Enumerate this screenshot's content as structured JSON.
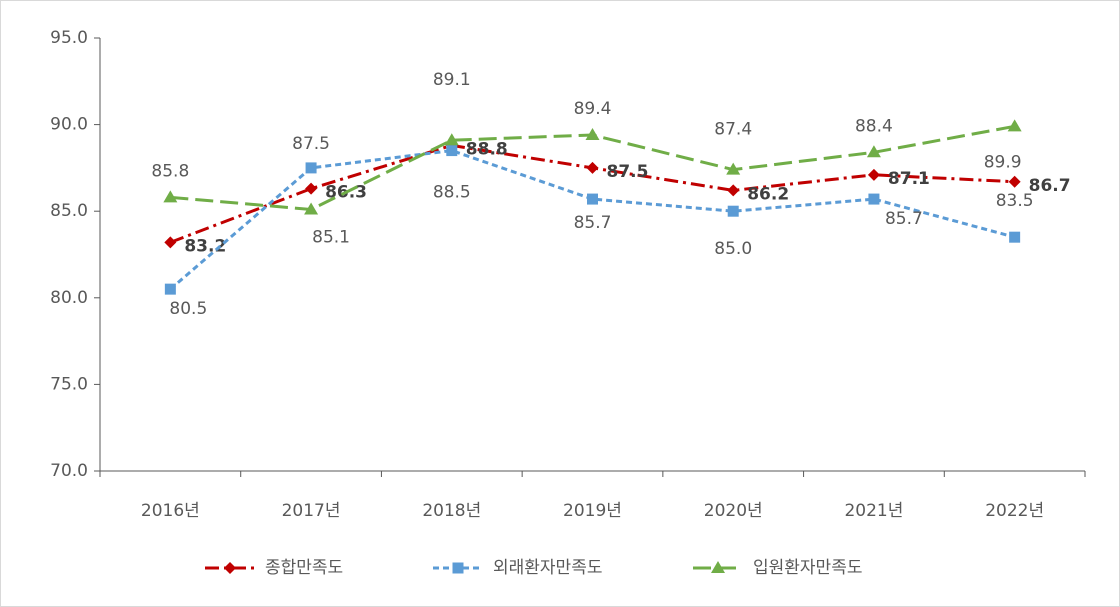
{
  "chart_data": {
    "type": "line",
    "categories": [
      "2016년",
      "2017년",
      "2018년",
      "2019년",
      "2020년",
      "2021년",
      "2022년"
    ],
    "series": [
      {
        "name": "종합만족도",
        "color": "#c00000",
        "dash": "dash-dot",
        "marker": "diamond",
        "values": [
          83.2,
          86.3,
          88.8,
          87.5,
          86.2,
          87.1,
          86.7
        ],
        "value_labels": [
          "83.2",
          "86.3",
          "88.8",
          "87.5",
          "86.2",
          "87.1",
          "86.7"
        ]
      },
      {
        "name": "외래환자만족도",
        "color": "#5b9bd5",
        "dash": "dash",
        "marker": "square",
        "values": [
          80.5,
          87.5,
          88.5,
          85.7,
          85.0,
          85.7,
          83.5
        ],
        "value_labels": [
          "80.5",
          "87.5",
          "88.5",
          "85.7",
          "85.0",
          "85.7",
          "83.5"
        ]
      },
      {
        "name": "입원환자만족도",
        "color": "#70ad47",
        "dash": "long-dash",
        "marker": "triangle",
        "values": [
          85.8,
          85.1,
          89.1,
          89.4,
          87.4,
          88.4,
          89.9
        ],
        "value_labels": [
          "85.8",
          "85.1",
          "89.1",
          "89.4",
          "87.4",
          "88.4",
          "89.9"
        ]
      }
    ],
    "ylim": [
      70,
      95
    ],
    "yticks": [
      {
        "value": 70,
        "label": "70.0"
      },
      {
        "value": 75,
        "label": "75.0"
      },
      {
        "value": 80,
        "label": "80.0"
      },
      {
        "value": 85,
        "label": "85.0"
      },
      {
        "value": 90,
        "label": "90.0"
      },
      {
        "value": 95,
        "label": "95.0"
      }
    ],
    "legend": "bottom"
  }
}
